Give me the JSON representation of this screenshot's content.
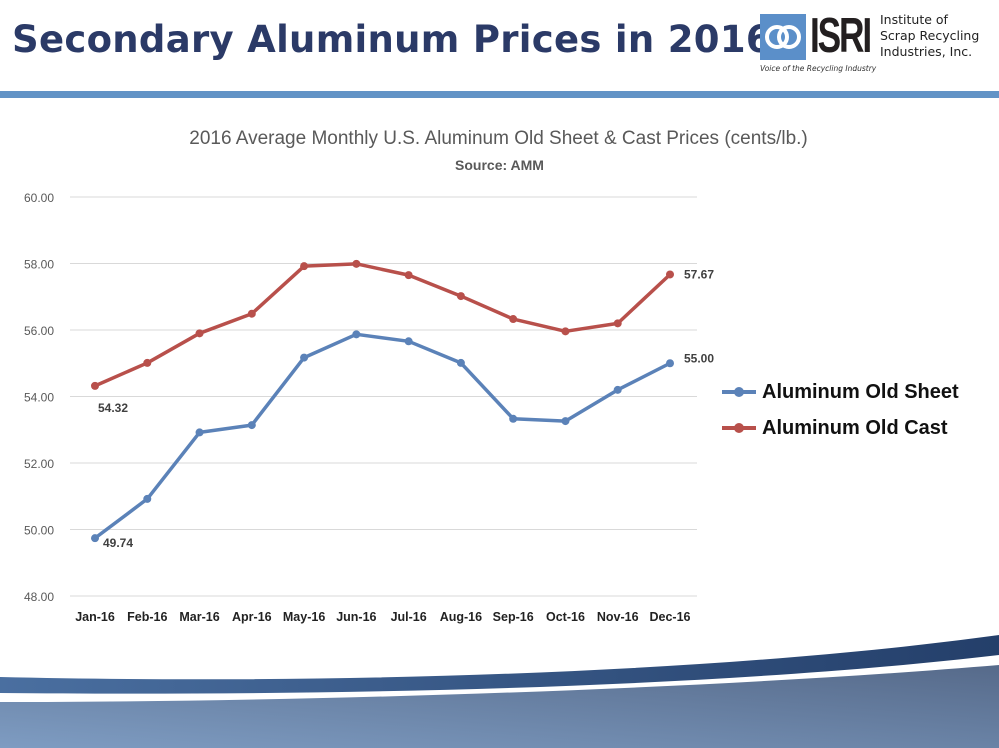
{
  "slide": {
    "title": "Secondary Aluminum Prices in 2016",
    "accent_color": "#6293c6",
    "title_color": "#2b3a67"
  },
  "logo": {
    "mark": "ISRI",
    "tagline": "Voice of the Recycling Industry",
    "name_lines": [
      "Institute of",
      "Scrap Recycling",
      "Industries, Inc."
    ]
  },
  "chart_data": {
    "type": "line",
    "title": "2016 Average Monthly U.S. Aluminum Old Sheet & Cast Prices (cents/lb.)",
    "subtitle": "Source: AMM",
    "xlabel": "",
    "ylabel": "",
    "categories": [
      "Jan-16",
      "Feb-16",
      "Mar-16",
      "Apr-16",
      "May-16",
      "Jun-16",
      "Jul-16",
      "Aug-16",
      "Sep-16",
      "Oct-16",
      "Nov-16",
      "Dec-16"
    ],
    "ylim": [
      48,
      60
    ],
    "yticks": [
      "48.00",
      "50.00",
      "52.00",
      "54.00",
      "56.00",
      "58.00",
      "60.00"
    ],
    "grid": true,
    "legend_position": "right",
    "series": [
      {
        "name": "Aluminum Old Sheet",
        "color": "#5b82b8",
        "values": [
          49.74,
          50.92,
          52.92,
          53.14,
          55.17,
          55.87,
          55.66,
          55.01,
          53.33,
          53.26,
          54.2,
          55.0
        ],
        "data_labels": {
          "0": "49.74",
          "11": "55.00"
        }
      },
      {
        "name": "Aluminum Old Cast",
        "color": "#b8504b",
        "values": [
          54.32,
          55.01,
          55.9,
          56.49,
          57.92,
          57.99,
          57.65,
          57.02,
          56.33,
          55.96,
          56.2,
          57.67
        ],
        "data_labels": {
          "0": "54.32",
          "11": "57.67"
        }
      }
    ]
  }
}
